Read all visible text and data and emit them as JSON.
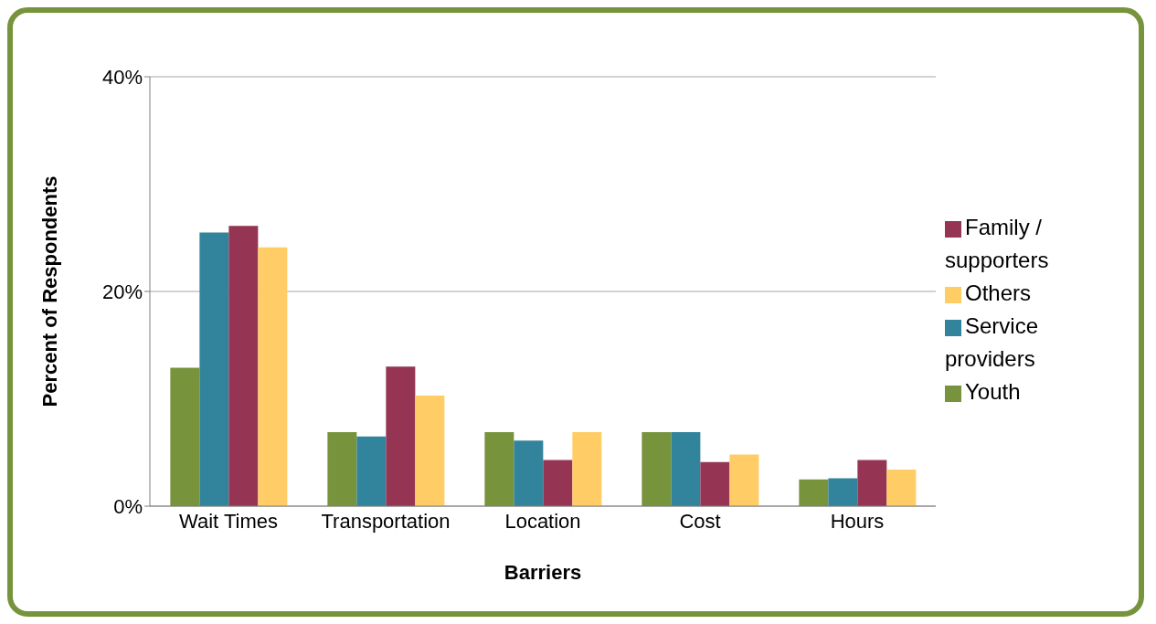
{
  "chart_data": {
    "type": "bar",
    "xlabel": "Barriers",
    "ylabel": "Percent of Respondents",
    "categories": [
      "Wait Times",
      "Transportation",
      "Location",
      "Cost",
      "Hours"
    ],
    "series": [
      {
        "name": "Youth",
        "color": "#77933c",
        "values": [
          12.9,
          6.9,
          6.9,
          6.9,
          2.5
        ]
      },
      {
        "name": "Service providers",
        "color": "#31849b",
        "values": [
          25.5,
          6.5,
          6.1,
          6.9,
          2.6
        ]
      },
      {
        "name": "Family / supporters",
        "color": "#953553",
        "values": [
          26.1,
          13.0,
          4.3,
          4.1,
          4.3
        ]
      },
      {
        "name": "Others",
        "color": "#ffcc66",
        "values": [
          24.1,
          10.3,
          6.9,
          4.8,
          3.4
        ]
      }
    ],
    "ylim": [
      0,
      40
    ],
    "yticks": [
      {
        "value": 0,
        "label": "0%"
      },
      {
        "value": 20,
        "label": "20%"
      },
      {
        "value": 40,
        "label": "40%"
      }
    ],
    "grid": "y",
    "legend": "right"
  }
}
